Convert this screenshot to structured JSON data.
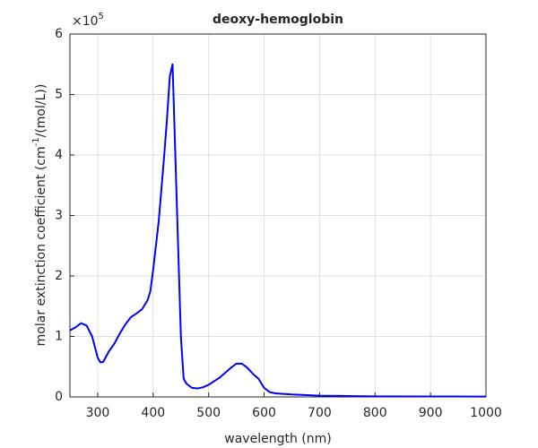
{
  "chart_data": {
    "type": "line",
    "title": "deoxy-hemoglobin",
    "xlabel": "wavelength (nm)",
    "ylabel": [
      "molar extinction coefficient (cm",
      "-1",
      "/(mol/L))"
    ],
    "y_multiplier": {
      "base": "×10",
      "exponent": "5"
    },
    "x": [
      250,
      260,
      270,
      280,
      290,
      300,
      305,
      310,
      320,
      330,
      340,
      350,
      360,
      370,
      380,
      390,
      395,
      400,
      410,
      420,
      425,
      430,
      435,
      440,
      445,
      450,
      455,
      460,
      470,
      480,
      490,
      500,
      510,
      520,
      530,
      540,
      550,
      560,
      570,
      580,
      590,
      600,
      610,
      620,
      650,
      700,
      750,
      800,
      900,
      1000
    ],
    "series": [
      {
        "name": "deoxy-hemoglobin",
        "color": "#0000ff",
        "values": [
          1.1,
          1.15,
          1.22,
          1.18,
          1.0,
          0.65,
          0.57,
          0.58,
          0.75,
          0.88,
          1.05,
          1.2,
          1.32,
          1.38,
          1.45,
          1.6,
          1.75,
          2.1,
          2.9,
          4.0,
          4.6,
          5.3,
          5.5,
          4.0,
          2.5,
          1.0,
          0.3,
          0.22,
          0.15,
          0.14,
          0.16,
          0.2,
          0.26,
          0.32,
          0.4,
          0.48,
          0.55,
          0.55,
          0.48,
          0.38,
          0.3,
          0.15,
          0.08,
          0.06,
          0.04,
          0.02,
          0.015,
          0.01,
          0.008,
          0.005
        ]
      }
    ],
    "xlim": [
      250,
      1000
    ],
    "xticks": [
      300,
      400,
      500,
      600,
      700,
      800,
      900,
      1000
    ],
    "ylim": [
      0,
      6
    ],
    "yticks": [
      0,
      1,
      2,
      3,
      4,
      5,
      6
    ],
    "grid": true
  }
}
